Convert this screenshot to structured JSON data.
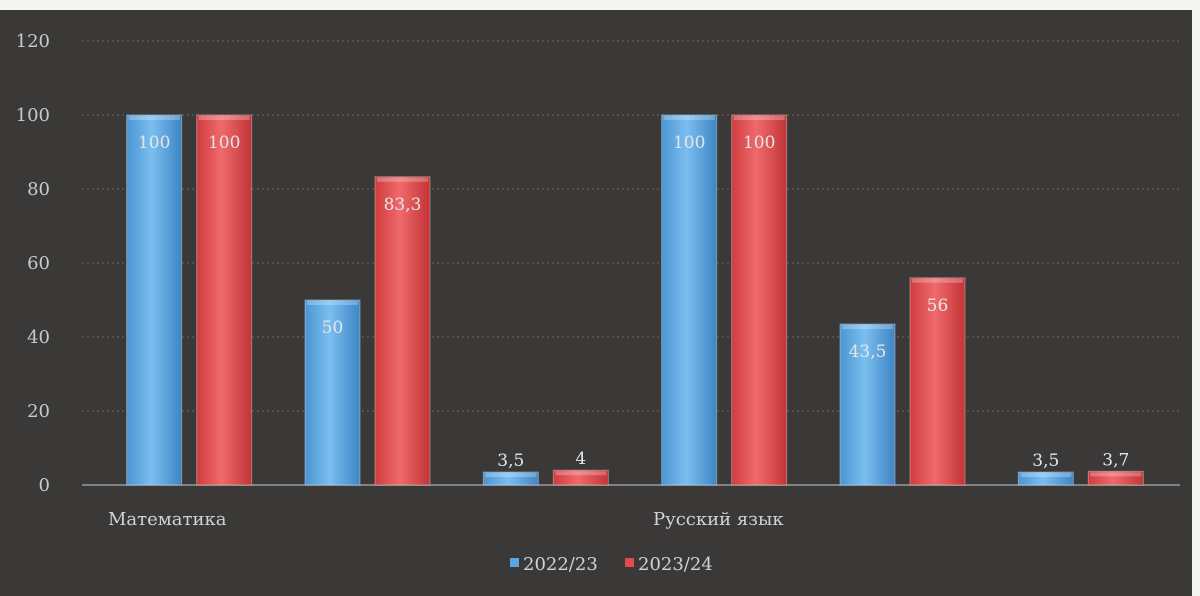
{
  "chart_data": {
    "type": "bar",
    "groups": [
      "Математика",
      "",
      "",
      "Русский язык",
      "",
      ""
    ],
    "series": [
      {
        "name": "2022/23",
        "color": "#59a7e2",
        "values": [
          100,
          50,
          3.5,
          100,
          43.5,
          3.5
        ]
      },
      {
        "name": "2023/24",
        "color": "#e24b4d",
        "values": [
          100,
          83.3,
          4,
          100,
          56,
          3.7
        ]
      }
    ],
    "value_labels": [
      [
        "100",
        "50",
        "3,5",
        "100",
        "43,5",
        "3,5"
      ],
      [
        "100",
        "83,3",
        "4",
        "100",
        "56",
        "3,7"
      ]
    ],
    "y_ticks": [
      "0",
      "20",
      "40",
      "60",
      "80",
      "100",
      "120"
    ],
    "ylim": [
      0,
      120
    ],
    "grid": true,
    "legend_position": "bottom-center",
    "background": "#3b3838"
  }
}
